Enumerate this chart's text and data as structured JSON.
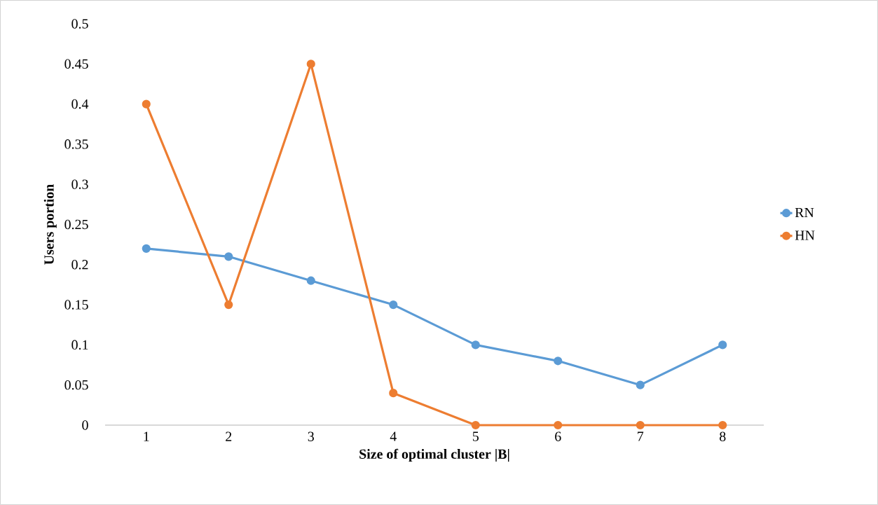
{
  "chart_data": {
    "type": "line",
    "xlabel": "Size of optimal cluster |B|",
    "ylabel": "Users portion",
    "categories": [
      "1",
      "2",
      "3",
      "4",
      "5",
      "6",
      "7",
      "8"
    ],
    "series": [
      {
        "name": "RN",
        "color": "#5b9bd5",
        "values": [
          0.22,
          0.21,
          0.18,
          0.15,
          0.1,
          0.08,
          0.05,
          0.1
        ]
      },
      {
        "name": "HN",
        "color": "#ed7d31",
        "values": [
          0.4,
          0.15,
          0.45,
          0.04,
          0,
          0,
          0,
          0
        ]
      }
    ],
    "ylim": [
      0,
      0.5
    ],
    "yticks": [
      0,
      0.05,
      0.1,
      0.15,
      0.2,
      0.25,
      0.3,
      0.35,
      0.4,
      0.45,
      0.5
    ],
    "legend": "right",
    "marker": "circle",
    "line_style": "solid"
  }
}
